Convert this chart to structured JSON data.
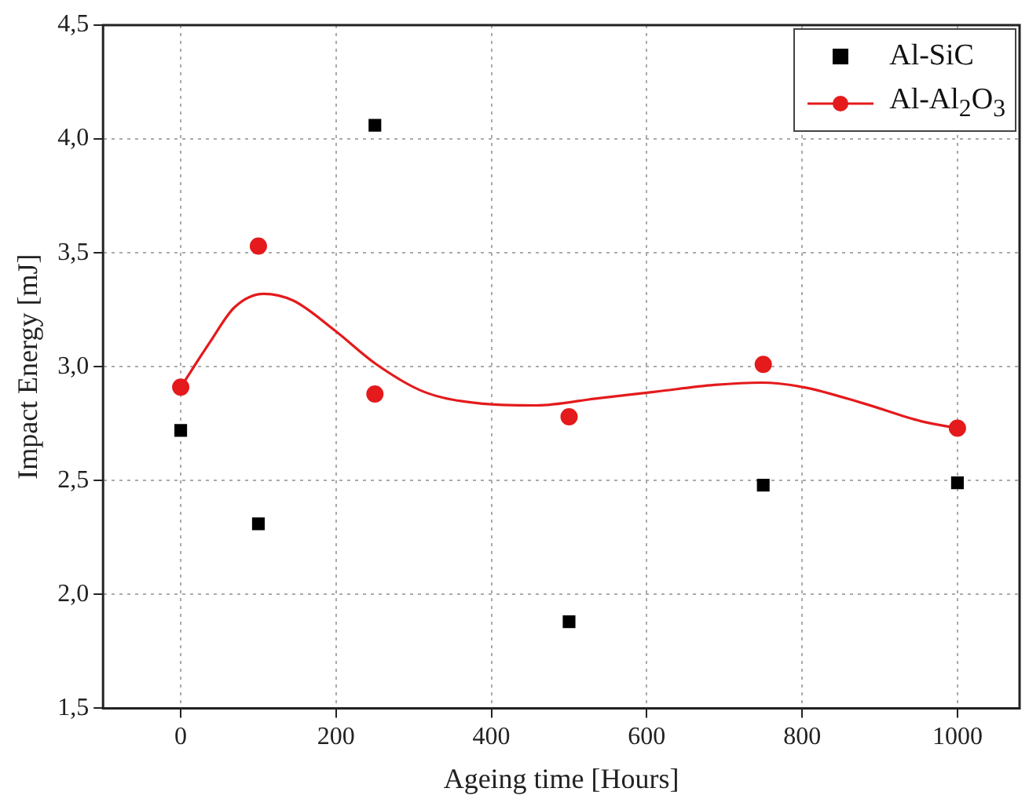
{
  "chart_data": {
    "type": "scatter",
    "xlabel": "Ageing time [Hours]",
    "ylabel": "Impact Energy [mJ]",
    "xlim": [
      -100,
      1080
    ],
    "xticks": [
      0,
      200,
      400,
      600,
      800,
      1000
    ],
    "ylim": [
      1.5,
      4.5
    ],
    "yticks": [
      {
        "value": 1.5,
        "label": "1,5"
      },
      {
        "value": 2.0,
        "label": "2,0"
      },
      {
        "value": 2.5,
        "label": "2,5"
      },
      {
        "value": 3.0,
        "label": "3,0"
      },
      {
        "value": 3.5,
        "label": "3,5"
      },
      {
        "value": 4.0,
        "label": "4,0"
      },
      {
        "value": 4.5,
        "label": "4,5"
      }
    ],
    "grid": true,
    "legend": "top right",
    "x": [
      0,
      100,
      250,
      500,
      750,
      1000
    ],
    "series": [
      {
        "name": "Al-SiC",
        "color": "#000000",
        "marker": "square",
        "values": [
          2.72,
          2.31,
          4.06,
          1.88,
          2.48,
          2.49
        ]
      },
      {
        "name": "Al-Al$_{2}$O$_{3}$",
        "color": "#e41a1c",
        "marker": "circle",
        "values": [
          2.91,
          3.53,
          2.88,
          2.78,
          3.01,
          2.73
        ]
      },
      {
        "type": "line",
        "color": "#e41a1c",
        "marker": "none",
        "line_style": "solid",
        "x": [
          0,
          38,
          69,
          107,
          145,
          198,
          252,
          313,
          382,
          458,
          534,
          611,
          687,
          748,
          802,
          878,
          954,
          1000
        ],
        "values": [
          2.91,
          3.11,
          3.26,
          3.32,
          3.29,
          3.16,
          3.01,
          2.89,
          2.84,
          2.83,
          2.86,
          2.89,
          2.92,
          2.93,
          2.91,
          2.84,
          2.76,
          2.73
        ]
      }
    ]
  }
}
